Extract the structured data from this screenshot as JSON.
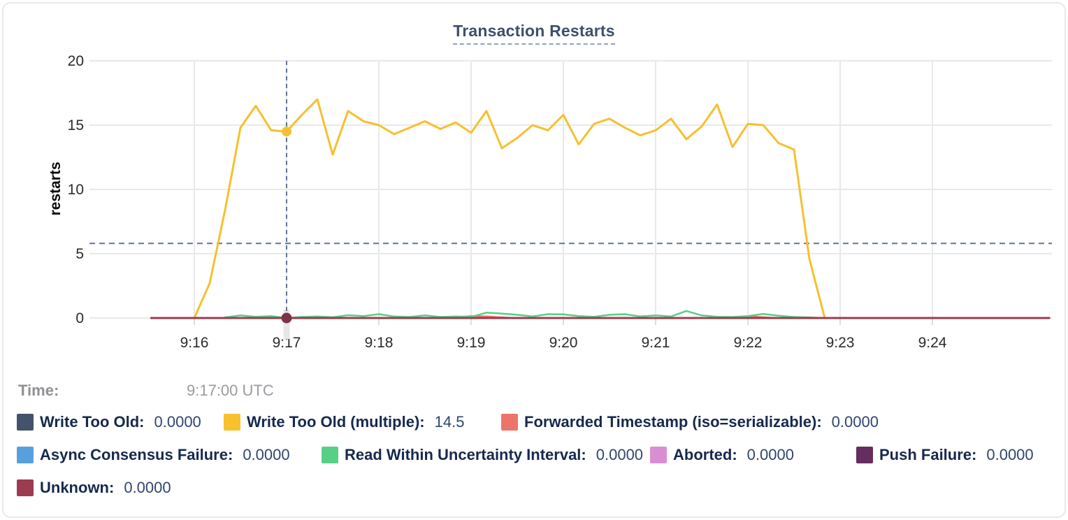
{
  "time_row": {
    "label": "Time:",
    "value": "9:17:00 UTC"
  },
  "chart_data": {
    "type": "line",
    "title": "Transaction Restarts",
    "ylabel": "restarts",
    "ylim": [
      0,
      20
    ],
    "y_ticks": [
      0,
      5,
      10,
      15,
      20
    ],
    "x_ticks": [
      "9:16",
      "9:17",
      "9:18",
      "9:19",
      "9:20",
      "9:21",
      "9:22",
      "9:23",
      "9:24"
    ],
    "x_unit": "seconds after 9:16:00, 10s sampling",
    "grid": true,
    "reference_line": {
      "value": 5.8,
      "style": "dashed",
      "color": "#5F7597"
    },
    "crosshair": {
      "x_offset": 60,
      "time": "9:17:00 UTC",
      "x_tick": "9:17",
      "color": "#5F7597",
      "band_color": "#e7e7e7"
    },
    "hover_dots": [
      {
        "series": "write-too-old-multiple",
        "x_offset": 60,
        "value": 14.5,
        "color": "#F6C02F",
        "r": 7
      },
      {
        "series": "unknown",
        "x_offset": 60,
        "value": 0,
        "color": "#7D3343",
        "r": 7.5
      }
    ],
    "draw_order": [
      "write-too-old",
      "async-consensus-failure",
      "aborted",
      "push-failure",
      "forwarded-timestamp",
      "read-within-uncertainty-interval",
      "write-too-old-multiple",
      "unknown"
    ],
    "series": [
      {
        "slug": "write-too-old",
        "name": "Write Too Old",
        "color": "#44526C",
        "stroke_width": 2,
        "points": [
          [
            -28,
            0
          ],
          [
            556,
            0
          ]
        ]
      },
      {
        "slug": "write-too-old-multiple",
        "name": "Write Too Old (multiple)",
        "color": "#F6C02F",
        "stroke_width": 3,
        "points": [
          [
            0,
            0
          ],
          [
            10,
            2.7
          ],
          [
            20,
            8.4
          ],
          [
            30,
            14.8
          ],
          [
            40,
            16.5
          ],
          [
            50,
            14.6
          ],
          [
            60,
            14.5
          ],
          [
            70,
            15.8
          ],
          [
            80,
            17.0
          ],
          [
            90,
            12.7
          ],
          [
            100,
            16.1
          ],
          [
            110,
            15.3
          ],
          [
            120,
            15.0
          ],
          [
            130,
            14.3
          ],
          [
            140,
            14.8
          ],
          [
            150,
            15.3
          ],
          [
            160,
            14.7
          ],
          [
            170,
            15.2
          ],
          [
            180,
            14.4
          ],
          [
            190,
            16.1
          ],
          [
            200,
            13.2
          ],
          [
            210,
            14.0
          ],
          [
            220,
            15.0
          ],
          [
            230,
            14.6
          ],
          [
            240,
            15.8
          ],
          [
            250,
            13.5
          ],
          [
            260,
            15.1
          ],
          [
            270,
            15.5
          ],
          [
            280,
            14.8
          ],
          [
            290,
            14.2
          ],
          [
            300,
            14.6
          ],
          [
            310,
            15.5
          ],
          [
            320,
            13.9
          ],
          [
            330,
            14.9
          ],
          [
            340,
            16.6
          ],
          [
            350,
            13.3
          ],
          [
            360,
            15.1
          ],
          [
            370,
            15.0
          ],
          [
            380,
            13.6
          ],
          [
            390,
            13.1
          ],
          [
            400,
            4.6
          ],
          [
            410,
            0
          ]
        ]
      },
      {
        "slug": "forwarded-timestamp",
        "name": "Forwarded Timestamp (iso=serializable)",
        "color": "#ED746B",
        "stroke_width": 2.5,
        "points": [
          [
            -28,
            0
          ],
          [
            165,
            0
          ],
          [
            172,
            0.08
          ],
          [
            180,
            0.14
          ],
          [
            190,
            0.12
          ],
          [
            200,
            0.05
          ],
          [
            208,
            0
          ],
          [
            345,
            0
          ],
          [
            352,
            0.08
          ],
          [
            362,
            0.12
          ],
          [
            372,
            0.05
          ],
          [
            378,
            0
          ],
          [
            556,
            0
          ]
        ]
      },
      {
        "slug": "async-consensus-failure",
        "name": "Async Consensus Failure",
        "color": "#58A0DC",
        "stroke_width": 2,
        "points": [
          [
            -28,
            0
          ],
          [
            556,
            0
          ]
        ]
      },
      {
        "slug": "read-within-uncertainty-interval",
        "name": "Read Within Uncertainty Interval",
        "color": "#57D086",
        "stroke_width": 2.5,
        "points": [
          [
            20,
            0.05
          ],
          [
            30,
            0.2
          ],
          [
            40,
            0.1
          ],
          [
            50,
            0.15
          ],
          [
            60,
            0
          ],
          [
            70,
            0.08
          ],
          [
            80,
            0.12
          ],
          [
            90,
            0.06
          ],
          [
            100,
            0.22
          ],
          [
            110,
            0.15
          ],
          [
            120,
            0.3
          ],
          [
            130,
            0.12
          ],
          [
            140,
            0.08
          ],
          [
            150,
            0.2
          ],
          [
            160,
            0.08
          ],
          [
            170,
            0.12
          ],
          [
            180,
            0.08
          ],
          [
            190,
            0.42
          ],
          [
            200,
            0.35
          ],
          [
            210,
            0.25
          ],
          [
            220,
            0.12
          ],
          [
            230,
            0.3
          ],
          [
            240,
            0.28
          ],
          [
            250,
            0.15
          ],
          [
            260,
            0.1
          ],
          [
            270,
            0.25
          ],
          [
            280,
            0.3
          ],
          [
            290,
            0.12
          ],
          [
            300,
            0.2
          ],
          [
            310,
            0.12
          ],
          [
            320,
            0.55
          ],
          [
            330,
            0.2
          ],
          [
            340,
            0.1
          ],
          [
            350,
            0.08
          ],
          [
            360,
            0.15
          ],
          [
            370,
            0.32
          ],
          [
            380,
            0.18
          ],
          [
            390,
            0.08
          ],
          [
            400,
            0.05
          ],
          [
            410,
            0
          ]
        ]
      },
      {
        "slug": "aborted",
        "name": "Aborted",
        "color": "#DA8ED2",
        "stroke_width": 2,
        "points": [
          [
            -28,
            0
          ],
          [
            556,
            0
          ]
        ]
      },
      {
        "slug": "push-failure",
        "name": "Push Failure",
        "color": "#662D60",
        "stroke_width": 2,
        "points": [
          [
            -28,
            0
          ],
          [
            556,
            0
          ]
        ]
      },
      {
        "slug": "unknown",
        "name": "Unknown",
        "color": "#9B3C51",
        "stroke_width": 3,
        "points": [
          [
            -28,
            0
          ],
          [
            556,
            0
          ]
        ]
      }
    ],
    "legend": {
      "rows": [
        [
          {
            "series": "write-too-old",
            "label": "Write Too Old:",
            "value": "0.0000",
            "color": "#44526C"
          },
          {
            "series": "write-too-old-multiple",
            "label": "Write Too Old (multiple):",
            "value": "14.5",
            "color": "#F6C02F"
          },
          {
            "series": "forwarded-timestamp",
            "label": "Forwarded Timestamp (iso=serializable):",
            "value": "0.0000",
            "color": "#ED746B"
          }
        ],
        [
          {
            "series": "async-consensus-failure",
            "label": "Async Consensus Failure:",
            "value": "0.0000",
            "color": "#58A0DC"
          },
          {
            "series": "read-within-uncertainty-interval",
            "label": "Read Within Uncertainty Interval:",
            "value": "0.0000",
            "color": "#57D086"
          },
          {
            "series": "aborted",
            "label": "Aborted:",
            "value": "0.0000",
            "color": "#DA8ED2"
          },
          {
            "series": "push-failure",
            "label": "Push Failure:",
            "value": "0.0000",
            "color": "#662D60"
          }
        ],
        [
          {
            "series": "unknown",
            "label": "Unknown:",
            "value": "0.0000",
            "color": "#9B3C51"
          }
        ]
      ]
    }
  }
}
